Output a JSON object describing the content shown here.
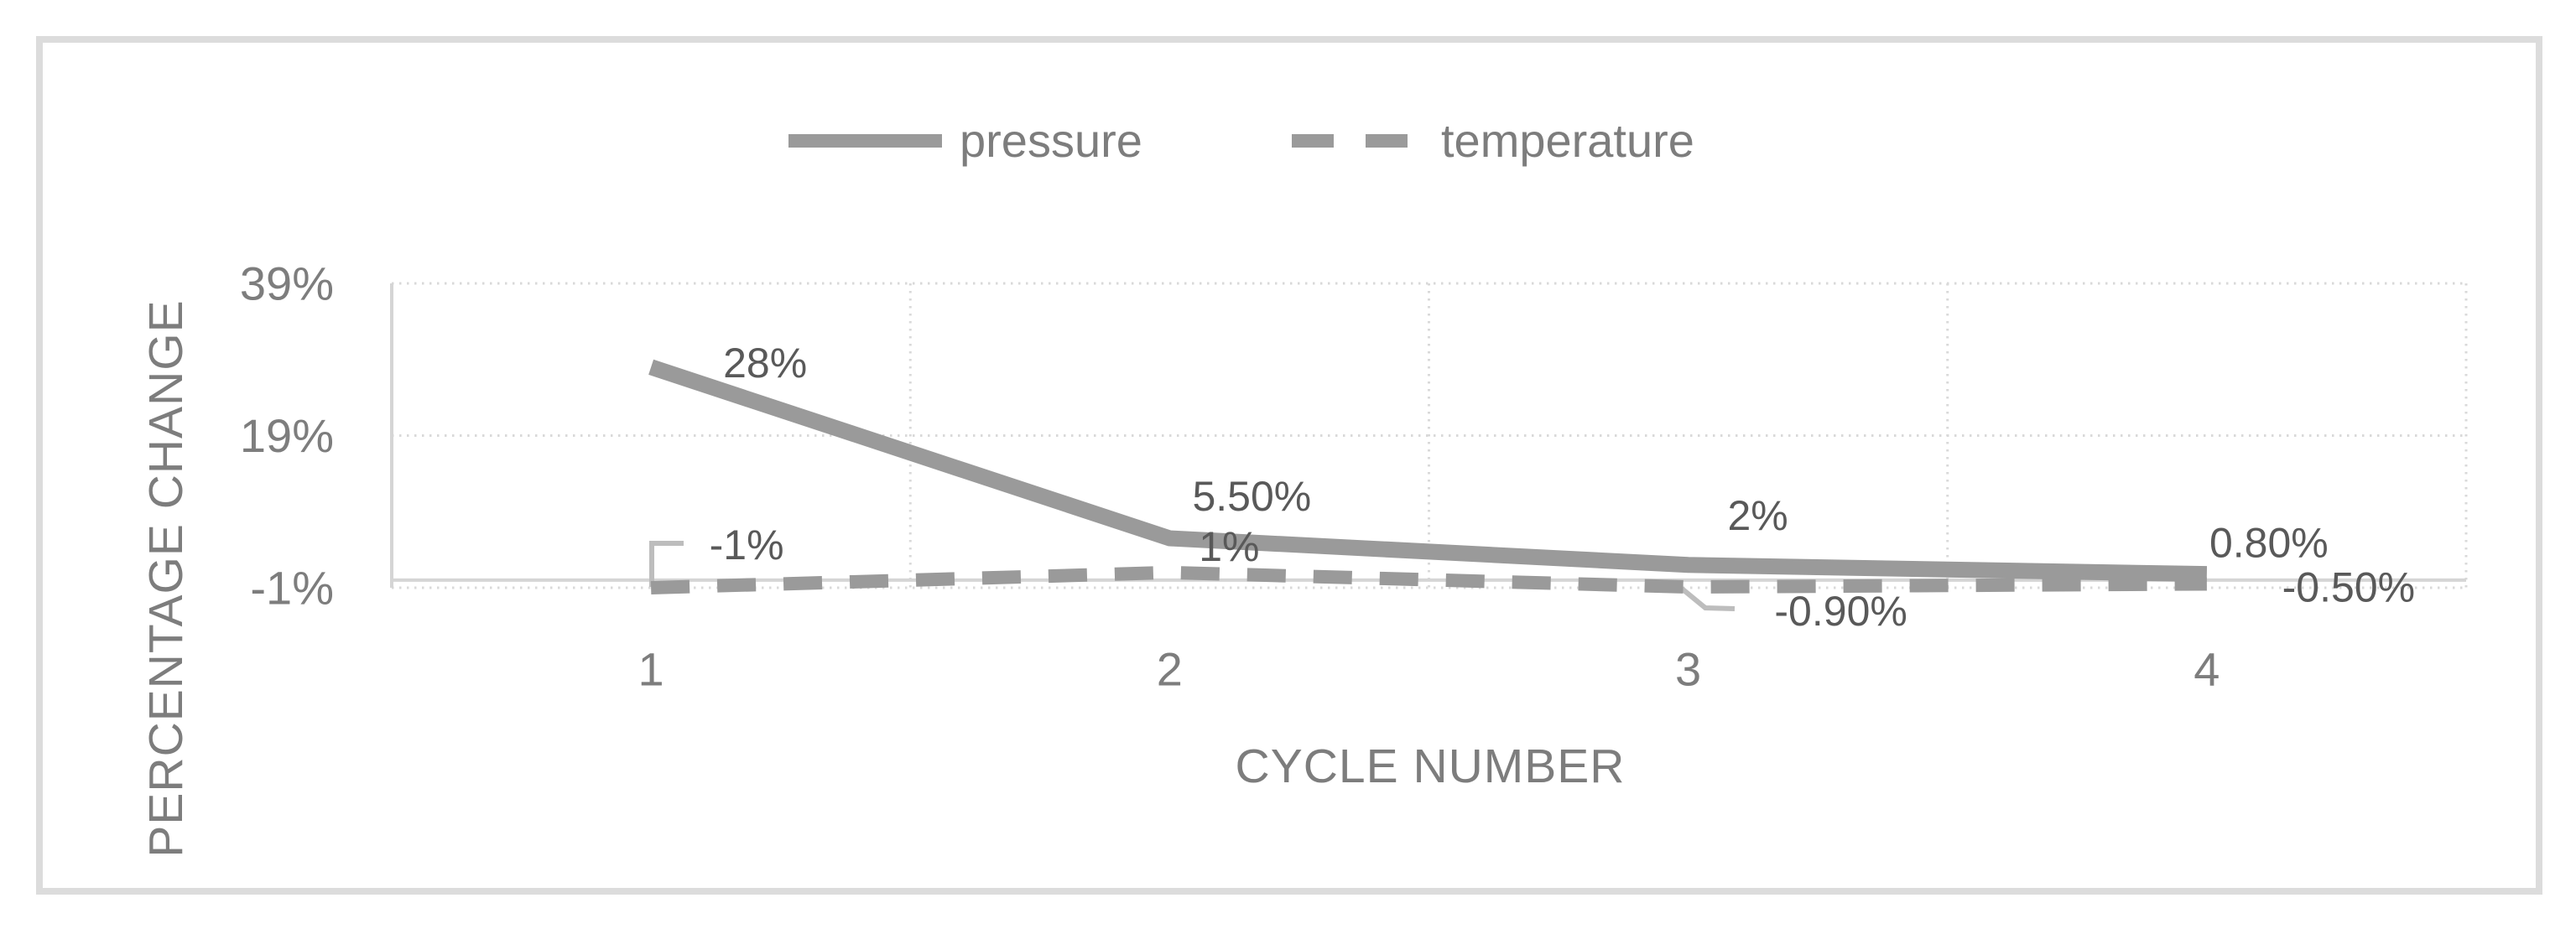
{
  "chart_data": {
    "type": "line",
    "title": "",
    "xlabel": "CYCLE NUMBER",
    "ylabel": "PERCENTAGE CHANGE",
    "categories": [
      "1",
      "2",
      "3",
      "4"
    ],
    "series": [
      {
        "name": "pressure",
        "style": "solid",
        "values": [
          28,
          5.5,
          2,
          0.8
        ],
        "labels": [
          "28%",
          "5.50%",
          "2%",
          "0.80%"
        ]
      },
      {
        "name": "temperature",
        "style": "dashed",
        "values": [
          -1,
          1,
          -0.9,
          -0.5
        ],
        "labels": [
          "-1%",
          "1%",
          "-0.90%",
          "-0.50%"
        ]
      }
    ],
    "y_ticks": [
      {
        "label": "39%",
        "value": 39
      },
      {
        "label": "19%",
        "value": 19
      },
      {
        "label": "-1%",
        "value": -1
      }
    ],
    "ylim": [
      -1,
      39
    ],
    "grid": "dotted",
    "legend_position": "top-center",
    "colors": {
      "series_line": "#9A9A9A",
      "data_label": "#595959",
      "axis_text": "#7D7D7D",
      "gridline": "#D9D9D9",
      "axis_line": "#D5D5D5",
      "leader_line": "#BDBDBD",
      "border": "#DCDCDC",
      "background": "#FFFFFF"
    }
  },
  "legend": {
    "items": [
      {
        "label": "pressure",
        "swatch": "solid-line"
      },
      {
        "label": "temperature",
        "swatch": "dashed-line"
      }
    ]
  }
}
